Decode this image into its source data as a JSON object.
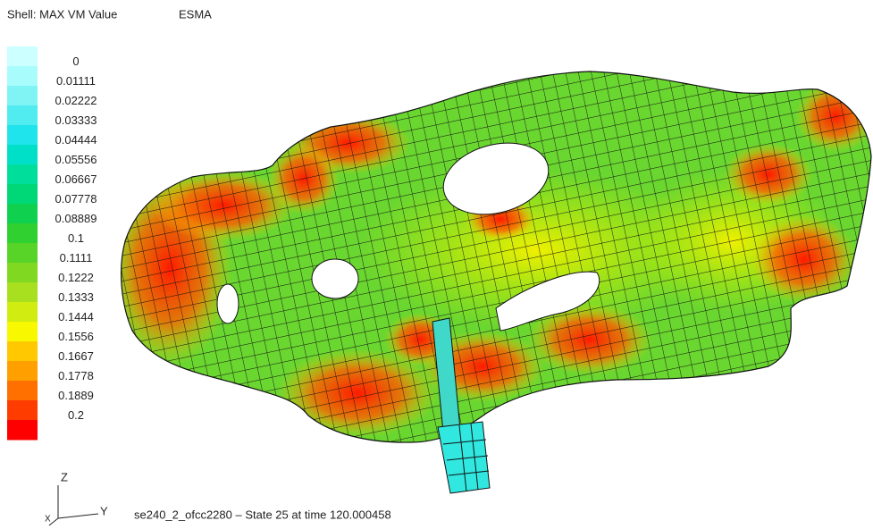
{
  "header": {
    "title": "Shell: MAX VM Value",
    "tag": "ESMA"
  },
  "legend": {
    "labels": [
      "0",
      "0.01111",
      "0.02222",
      "0.03333",
      "0.04444",
      "0.05556",
      "0.06667",
      "0.07778",
      "0.08889",
      "0.1",
      "0.1111",
      "0.1222",
      "0.1333",
      "0.1444",
      "0.1556",
      "0.1667",
      "0.1778",
      "0.1889",
      "0.2"
    ],
    "colors": [
      "#ccffff",
      "#a8fcfc",
      "#80f4f4",
      "#50ecf0",
      "#20e4ec",
      "#00e0c8",
      "#00de9c",
      "#00d878",
      "#10d050",
      "#30d030",
      "#58d428",
      "#80d820",
      "#a8e020",
      "#d0ec10",
      "#f8f800",
      "#ffc800",
      "#ffa000",
      "#ff7000",
      "#ff3c00",
      "#ff0000"
    ]
  },
  "triad": {
    "z": "Z",
    "x": "X",
    "y": "Y"
  },
  "footer": {
    "caption": "se240_2_ofcc2280 – State 25 at time 120.000458"
  }
}
